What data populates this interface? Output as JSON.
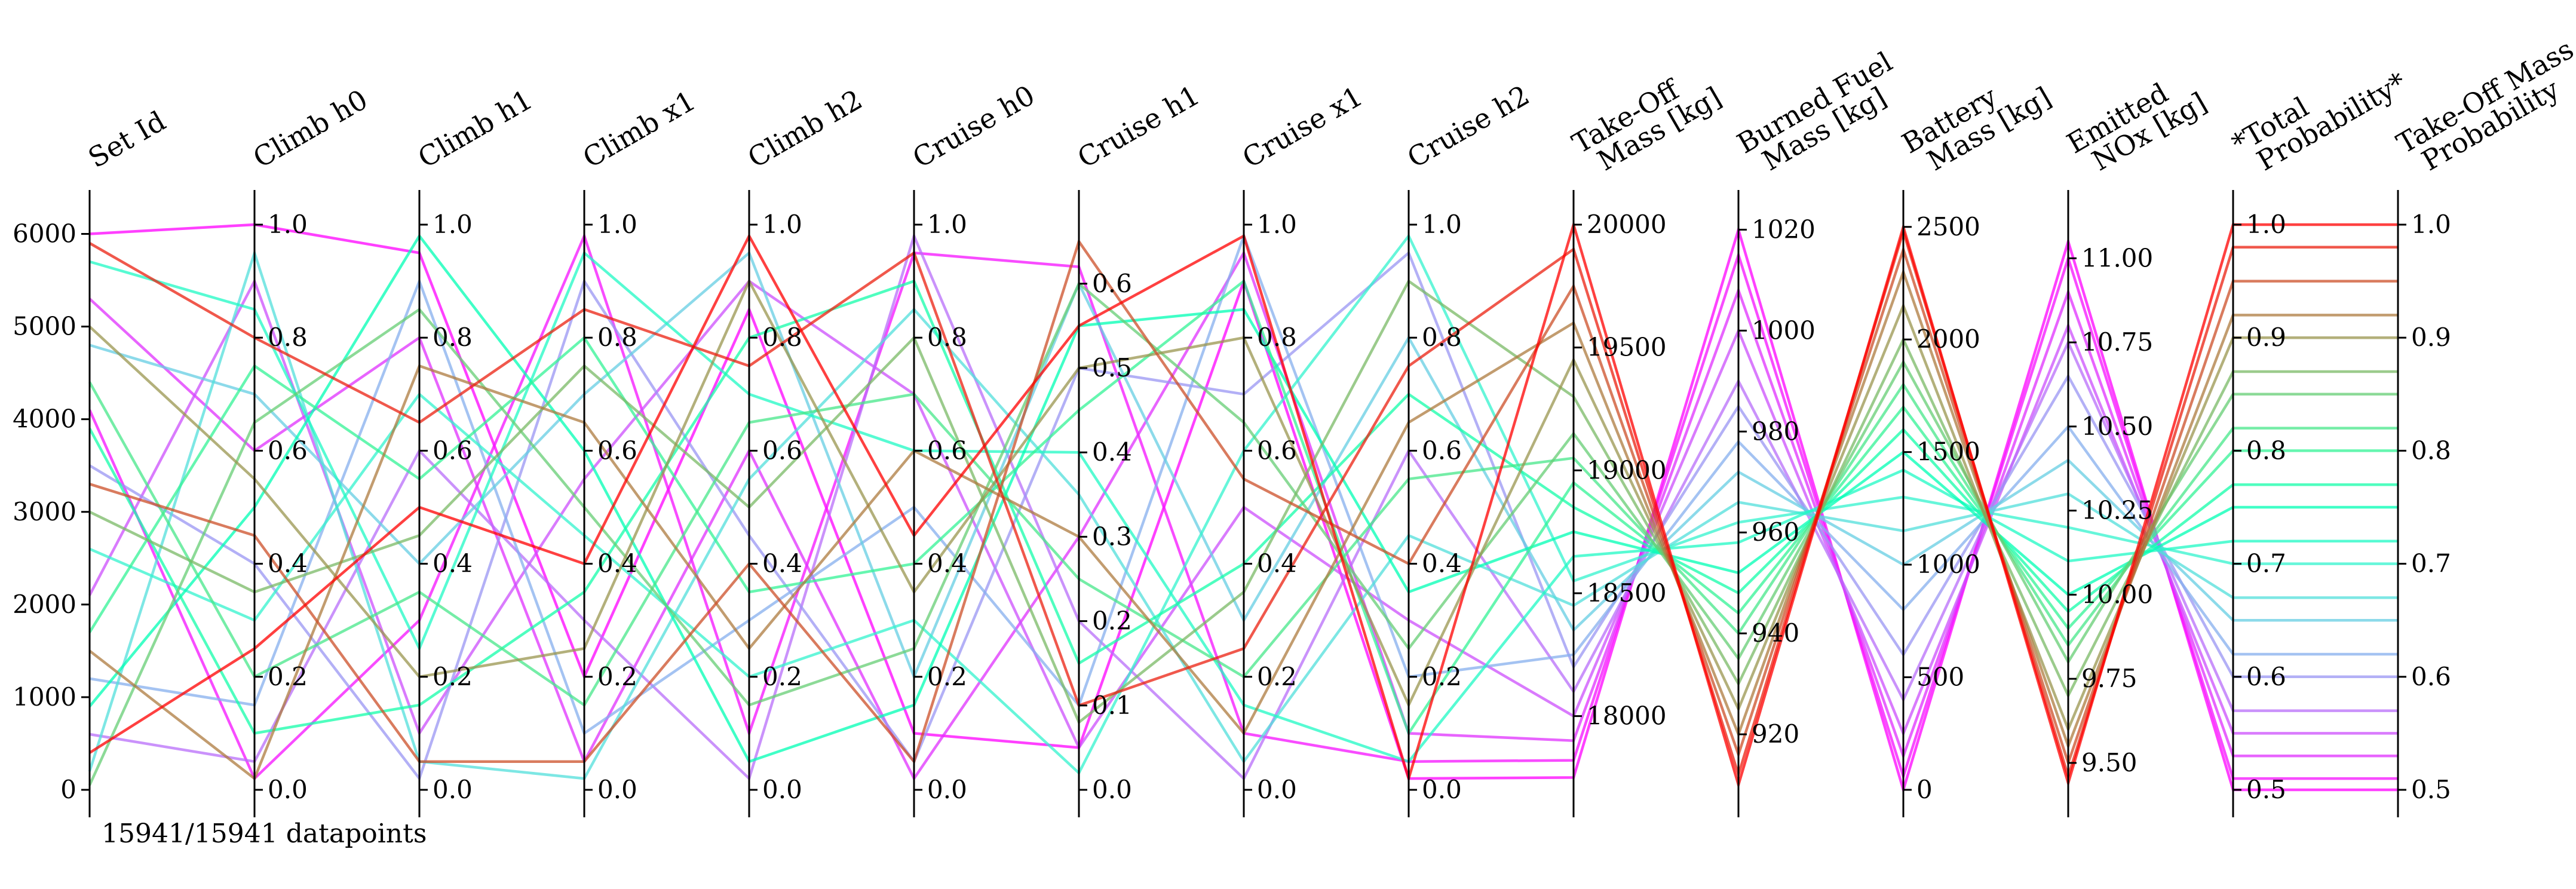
{
  "chart_data": {
    "type": "parallel-coordinates",
    "color_by": "Total Probability",
    "colormap": "rainbow",
    "footer": "15941/15941 datapoints",
    "axes": [
      {
        "name": "set_id",
        "title": [
          "Set Id"
        ],
        "range": [
          0,
          6100
        ],
        "ticks": [
          0,
          1000,
          2000,
          3000,
          4000,
          5000,
          6000
        ],
        "tick_labels": [
          "0",
          "1000",
          "2000",
          "3000",
          "4000",
          "5000",
          "6000"
        ],
        "tick_side": "left"
      },
      {
        "name": "climb_h0",
        "title": [
          "Climb h0"
        ],
        "range": [
          0,
          1
        ],
        "ticks": [
          0.0,
          0.2,
          0.4,
          0.6,
          0.8,
          1.0
        ],
        "tick_labels": [
          "0.0",
          "0.2",
          "0.4",
          "0.6",
          "0.8",
          "1.0"
        ],
        "tick_side": "right"
      },
      {
        "name": "climb_h1",
        "title": [
          "Climb h1"
        ],
        "range": [
          0,
          1
        ],
        "ticks": [
          0.0,
          0.2,
          0.4,
          0.6,
          0.8,
          1.0
        ],
        "tick_labels": [
          "0.0",
          "0.2",
          "0.4",
          "0.6",
          "0.8",
          "1.0"
        ],
        "tick_side": "right"
      },
      {
        "name": "climb_x1",
        "title": [
          "Climb x1"
        ],
        "range": [
          0,
          1
        ],
        "ticks": [
          0.0,
          0.2,
          0.4,
          0.6,
          0.8,
          1.0
        ],
        "tick_labels": [
          "0.0",
          "0.2",
          "0.4",
          "0.6",
          "0.8",
          "1.0"
        ],
        "tick_side": "right"
      },
      {
        "name": "climb_h2",
        "title": [
          "Climb h2"
        ],
        "range": [
          0,
          1
        ],
        "ticks": [
          0.0,
          0.2,
          0.4,
          0.6,
          0.8,
          1.0
        ],
        "tick_labels": [
          "0.0",
          "0.2",
          "0.4",
          "0.6",
          "0.8",
          "1.0"
        ],
        "tick_side": "right"
      },
      {
        "name": "cruise_h0",
        "title": [
          "Cruise h0"
        ],
        "range": [
          0,
          1
        ],
        "ticks": [
          0.0,
          0.2,
          0.4,
          0.6,
          0.8,
          1.0
        ],
        "tick_labels": [
          "0.0",
          "0.2",
          "0.4",
          "0.6",
          "0.8",
          "1.0"
        ],
        "tick_side": "right"
      },
      {
        "name": "cruise_h1",
        "title": [
          "Cruise h1"
        ],
        "range": [
          0,
          0.67
        ],
        "ticks": [
          0.0,
          0.1,
          0.2,
          0.3,
          0.4,
          0.5,
          0.6
        ],
        "tick_labels": [
          "0.0",
          "0.1",
          "0.2",
          "0.3",
          "0.4",
          "0.5",
          "0.6"
        ],
        "tick_side": "right"
      },
      {
        "name": "cruise_x1",
        "title": [
          "Cruise x1"
        ],
        "range": [
          0,
          1
        ],
        "ticks": [
          0.0,
          0.2,
          0.4,
          0.6,
          0.8,
          1.0
        ],
        "tick_labels": [
          "0.0",
          "0.2",
          "0.4",
          "0.6",
          "0.8",
          "1.0"
        ],
        "tick_side": "right"
      },
      {
        "name": "cruise_h2",
        "title": [
          "Cruise h2"
        ],
        "range": [
          0,
          1
        ],
        "ticks": [
          0.0,
          0.2,
          0.4,
          0.6,
          0.8,
          1.0
        ],
        "tick_labels": [
          "0.0",
          "0.2",
          "0.4",
          "0.6",
          "0.8",
          "1.0"
        ],
        "tick_side": "right"
      },
      {
        "name": "takeoff_mass",
        "title": [
          "Take-Off",
          "Mass [kg]"
        ],
        "range": [
          17700,
          20000
        ],
        "ticks": [
          18000,
          18500,
          19000,
          19500,
          20000
        ],
        "tick_labels": [
          "18000",
          "18500",
          "19000",
          "19500",
          "20000"
        ],
        "tick_side": "right"
      },
      {
        "name": "burned_fuel_mass",
        "title": [
          "Burned Fuel",
          "Mass [kg]"
        ],
        "range": [
          909,
          1021
        ],
        "ticks": [
          920,
          940,
          960,
          980,
          1000,
          1020
        ],
        "tick_labels": [
          "920",
          "940",
          "960",
          "980",
          "1000",
          "1020"
        ],
        "tick_side": "right"
      },
      {
        "name": "battery_mass",
        "title": [
          "Battery",
          "Mass [kg]"
        ],
        "range": [
          0,
          2510
        ],
        "ticks": [
          0,
          500,
          1000,
          1500,
          2000,
          2500
        ],
        "tick_labels": [
          "0",
          "500",
          "1000",
          "1500",
          "2000",
          "2500"
        ],
        "tick_side": "right"
      },
      {
        "name": "emitted_nox",
        "title": [
          "Emitted",
          "NOx [kg]"
        ],
        "range": [
          9.42,
          11.1
        ],
        "ticks": [
          9.5,
          9.75,
          10.0,
          10.25,
          10.5,
          10.75,
          11.0
        ],
        "tick_labels": [
          "9.50",
          "9.75",
          "10.00",
          "10.25",
          "10.50",
          "10.75",
          "11.00"
        ],
        "tick_side": "right"
      },
      {
        "name": "total_probability",
        "title": [
          "*Total",
          "Probability*"
        ],
        "range": [
          0.5,
          1.0
        ],
        "ticks": [
          0.5,
          0.6,
          0.7,
          0.8,
          0.9,
          1.0
        ],
        "tick_labels": [
          "0.5",
          "0.6",
          "0.7",
          "0.8",
          "0.9",
          "1.0"
        ],
        "tick_side": "right"
      },
      {
        "name": "takeoff_mass_probability",
        "title": [
          "Take-Off Mass",
          "Probability"
        ],
        "range": [
          0.5,
          1.0
        ],
        "ticks": [
          0.5,
          0.6,
          0.7,
          0.8,
          0.9,
          1.0
        ],
        "tick_labels": [
          "0.5",
          "0.6",
          "0.7",
          "0.8",
          "0.9",
          "1.0"
        ],
        "tick_side": "right"
      }
    ],
    "samples": [
      [
        6000,
        1.0,
        0.95,
        0.2,
        0.85,
        0.1,
        0.05,
        0.9,
        0.02,
        17750,
        1020,
        0,
        11.05,
        0.5,
        0.5
      ],
      [
        4100,
        0.02,
        0.3,
        0.98,
        0.1,
        0.95,
        0.62,
        0.1,
        0.05,
        17820,
        1015,
        60,
        11.0,
        0.51,
        0.51
      ],
      [
        5300,
        0.6,
        0.8,
        0.05,
        0.6,
        0.02,
        0.3,
        0.95,
        0.1,
        17900,
        1008,
        150,
        10.9,
        0.53,
        0.53
      ],
      [
        2100,
        0.9,
        0.1,
        0.55,
        0.9,
        0.7,
        0.05,
        0.5,
        0.3,
        18000,
        1000,
        250,
        10.8,
        0.55,
        0.55
      ],
      [
        600,
        0.05,
        0.6,
        0.3,
        0.02,
        0.98,
        0.2,
        0.02,
        0.6,
        18100,
        990,
        400,
        10.75,
        0.57,
        0.57
      ],
      [
        3500,
        0.4,
        0.02,
        0.9,
        0.45,
        0.05,
        0.5,
        0.7,
        0.95,
        18200,
        985,
        600,
        10.65,
        0.6,
        0.6
      ],
      [
        1200,
        0.15,
        0.9,
        0.1,
        0.3,
        0.5,
        0.1,
        0.98,
        0.2,
        18250,
        978,
        800,
        10.5,
        0.62,
        0.62
      ],
      [
        4800,
        0.7,
        0.4,
        0.7,
        0.95,
        0.2,
        0.6,
        0.3,
        0.8,
        18350,
        972,
        1000,
        10.4,
        0.65,
        0.65
      ],
      [
        200,
        0.95,
        0.05,
        0.02,
        0.55,
        0.85,
        0.35,
        0.05,
        0.45,
        18450,
        966,
        1150,
        10.3,
        0.67,
        0.67
      ],
      [
        2600,
        0.3,
        0.7,
        0.45,
        0.2,
        0.3,
        0.02,
        0.6,
        0.98,
        18550,
        962,
        1300,
        10.2,
        0.7,
        0.7
      ],
      [
        5700,
        0.85,
        0.25,
        0.95,
        0.7,
        0.6,
        0.4,
        0.15,
        0.05,
        18650,
        958,
        1420,
        10.1,
        0.72,
        0.72
      ],
      [
        900,
        0.5,
        0.98,
        0.6,
        0.05,
        0.15,
        0.55,
        0.85,
        0.35,
        18750,
        952,
        1500,
        10.0,
        0.75,
        0.75
      ],
      [
        3900,
        0.1,
        0.15,
        0.35,
        0.8,
        0.9,
        0.15,
        0.4,
        0.7,
        18850,
        948,
        1600,
        9.95,
        0.77,
        0.77
      ],
      [
        1700,
        0.75,
        0.55,
        0.8,
        0.35,
        0.4,
        0.45,
        0.9,
        0.1,
        18950,
        944,
        1700,
        9.9,
        0.8,
        0.8
      ],
      [
        4400,
        0.2,
        0.35,
        0.15,
        0.65,
        0.7,
        0.25,
        0.2,
        0.55,
        19050,
        940,
        1800,
        9.85,
        0.82,
        0.82
      ],
      [
        50,
        0.65,
        0.85,
        0.5,
        0.15,
        0.25,
        0.6,
        0.65,
        0.25,
        19150,
        935,
        1900,
        9.8,
        0.85,
        0.85
      ],
      [
        3000,
        0.35,
        0.45,
        0.75,
        0.5,
        0.8,
        0.08,
        0.35,
        0.9,
        19300,
        930,
        2000,
        9.7,
        0.87,
        0.87
      ],
      [
        5000,
        0.55,
        0.2,
        0.25,
        0.9,
        0.35,
        0.5,
        0.8,
        0.15,
        19450,
        925,
        2150,
        9.6,
        0.9,
        0.9
      ],
      [
        1500,
        0.02,
        0.75,
        0.65,
        0.25,
        0.6,
        0.3,
        0.1,
        0.65,
        19600,
        920,
        2300,
        9.55,
        0.92,
        0.92
      ],
      [
        3300,
        0.45,
        0.05,
        0.05,
        0.4,
        0.05,
        0.65,
        0.55,
        0.4,
        19750,
        916,
        2400,
        9.5,
        0.95,
        0.95
      ],
      [
        5900,
        0.8,
        0.65,
        0.85,
        0.75,
        0.95,
        0.1,
        0.25,
        0.75,
        19900,
        912,
        2480,
        9.46,
        0.98,
        0.98
      ],
      [
        400,
        0.25,
        0.5,
        0.4,
        0.98,
        0.45,
        0.55,
        0.98,
        0.02,
        20000,
        910,
        2500,
        9.44,
        1.0,
        1.0
      ]
    ]
  }
}
